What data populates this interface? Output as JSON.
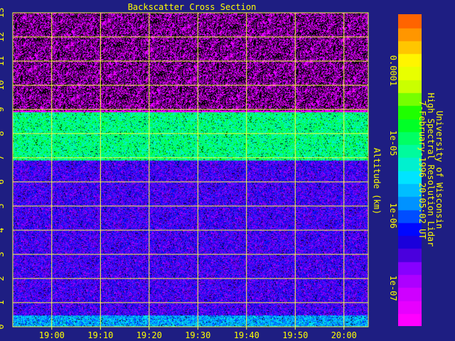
{
  "colors": {
    "background": "#1e1e82",
    "text": "#ffff00",
    "grid": "#ffff40"
  },
  "info": {
    "line1": "University of Wisconsin",
    "line2": "High Spectral Resolution Lidar",
    "line3": "7-February-1996 20:05:02 UT"
  },
  "chart_data": {
    "type": "heatmap",
    "title": "Backscatter Cross Section",
    "xlabel": "",
    "ylabel": "Altitude (km)",
    "x_ticks": [
      "19:00",
      "19:10",
      "19:20",
      "19:30",
      "19:40",
      "19:50",
      "20:00"
    ],
    "y_ticks": [
      "0",
      "1",
      "2",
      "3",
      "4",
      "5",
      "6",
      "7",
      "8",
      "9",
      "10",
      "11",
      "12",
      "13"
    ],
    "xlim": [
      "18:52",
      "20:05"
    ],
    "ylim": [
      0,
      13
    ],
    "grid": true,
    "colorbar": {
      "scale": "log",
      "range": [
        3e-08,
        0.0006
      ],
      "tick_labels": [
        "1e-07",
        "1e-06",
        "1e-05",
        "0.0001"
      ],
      "tick_values": [
        1e-07,
        1e-06,
        1e-05,
        0.0001
      ]
    },
    "features": [
      {
        "altitude_range_km": [
          6.9,
          8.9
        ],
        "level": 1e-05
      },
      {
        "altitude_range_km": [
          0,
          0.5
        ],
        "level": 2e-06
      },
      {
        "altitude_range_km": [
          0.5,
          6.9
        ],
        "level": 3e-07
      },
      {
        "altitude_range_km": [
          9,
          13
        ],
        "level": 5e-08
      }
    ]
  }
}
